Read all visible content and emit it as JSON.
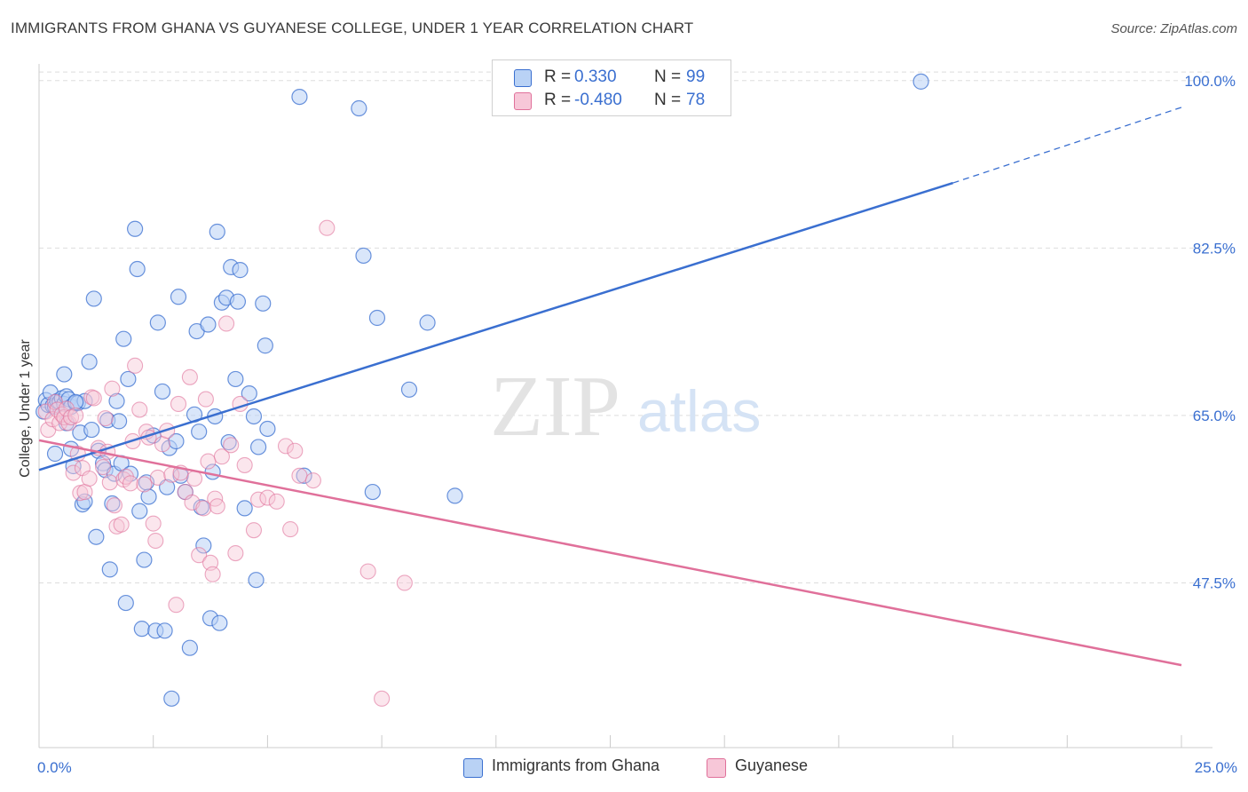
{
  "title": "IMMIGRANTS FROM GHANA VS GUYANESE COLLEGE, UNDER 1 YEAR CORRELATION CHART",
  "source": "Source: ZipAtlas.com",
  "watermark": {
    "zip": "ZIP",
    "atlas": "atlas"
  },
  "colors": {
    "blue": "#3a6fd0",
    "blue_fill": "#b9d2f5",
    "pink": "#e0709a",
    "pink_fill": "#f7c7d8",
    "tick_text": "#3a6fd0"
  },
  "legend": {
    "r_label": "R =",
    "n_label": "N =",
    "entries": [
      {
        "r": "0.330",
        "n": "99"
      },
      {
        "r": "-0.480",
        "n": "78"
      }
    ]
  },
  "chart_data": {
    "type": "scatter",
    "title": "IMMIGRANTS FROM GHANA VS GUYANESE COLLEGE, UNDER 1 YEAR CORRELATION CHART",
    "xlabel": "",
    "ylabel": "College, Under 1 year",
    "xlim": [
      0,
      25
    ],
    "ylim": [
      30,
      101
    ],
    "x_tick_labels": [
      "0.0%",
      "25.0%"
    ],
    "y_ticks": [
      47.5,
      65.0,
      82.5,
      100.0
    ],
    "y_tick_labels": [
      "47.5%",
      "65.0%",
      "82.5%",
      "100.0%"
    ],
    "grid": true,
    "legend_position": "top-center",
    "series": [
      {
        "name": "Immigrants from Ghana",
        "color": "#3a6fd0",
        "trend": {
          "x": [
            0,
            20
          ],
          "y": [
            59.3,
            89.3
          ],
          "dashed_to": [
            25,
            97.2
          ]
        },
        "points": [
          [
            0.1,
            65.4
          ],
          [
            0.15,
            66.6
          ],
          [
            0.2,
            66.1
          ],
          [
            0.25,
            67.4
          ],
          [
            0.3,
            66.0
          ],
          [
            0.35,
            65.9
          ],
          [
            0.4,
            66.5
          ],
          [
            0.45,
            66.4
          ],
          [
            0.5,
            66.8
          ],
          [
            0.55,
            66.2
          ],
          [
            0.6,
            67.0
          ],
          [
            0.65,
            66.7
          ],
          [
            0.7,
            65.9
          ],
          [
            0.8,
            66.3
          ],
          [
            0.85,
            66.3
          ],
          [
            1.0,
            66.5
          ],
          [
            0.35,
            61.0
          ],
          [
            0.55,
            69.3
          ],
          [
            0.6,
            64.2
          ],
          [
            0.7,
            61.5
          ],
          [
            0.75,
            59.7
          ],
          [
            0.8,
            66.4
          ],
          [
            0.9,
            63.2
          ],
          [
            0.95,
            55.7
          ],
          [
            1.0,
            56.0
          ],
          [
            1.1,
            70.6
          ],
          [
            1.15,
            63.5
          ],
          [
            1.2,
            77.2
          ],
          [
            1.25,
            52.3
          ],
          [
            1.3,
            61.3
          ],
          [
            1.4,
            60.0
          ],
          [
            1.45,
            59.3
          ],
          [
            1.5,
            64.5
          ],
          [
            1.55,
            48.9
          ],
          [
            1.6,
            55.8
          ],
          [
            1.65,
            58.9
          ],
          [
            1.7,
            66.5
          ],
          [
            1.75,
            64.4
          ],
          [
            1.8,
            60.0
          ],
          [
            1.85,
            73.0
          ],
          [
            1.9,
            45.4
          ],
          [
            1.95,
            68.8
          ],
          [
            2.0,
            58.9
          ],
          [
            2.1,
            84.5
          ],
          [
            2.15,
            80.3
          ],
          [
            2.2,
            55.0
          ],
          [
            2.25,
            42.7
          ],
          [
            2.3,
            49.9
          ],
          [
            2.35,
            58.0
          ],
          [
            2.4,
            56.5
          ],
          [
            2.5,
            62.9
          ],
          [
            2.55,
            42.5
          ],
          [
            2.6,
            74.7
          ],
          [
            2.7,
            67.5
          ],
          [
            2.75,
            42.5
          ],
          [
            2.8,
            57.5
          ],
          [
            2.85,
            61.6
          ],
          [
            2.9,
            35.4
          ],
          [
            3.0,
            62.3
          ],
          [
            3.05,
            77.4
          ],
          [
            3.1,
            58.7
          ],
          [
            3.2,
            57.0
          ],
          [
            3.3,
            40.7
          ],
          [
            3.4,
            65.1
          ],
          [
            3.45,
            73.8
          ],
          [
            3.5,
            63.3
          ],
          [
            3.55,
            55.4
          ],
          [
            3.6,
            51.4
          ],
          [
            3.7,
            74.5
          ],
          [
            3.75,
            43.8
          ],
          [
            3.8,
            59.1
          ],
          [
            3.85,
            64.9
          ],
          [
            3.9,
            84.2
          ],
          [
            3.95,
            43.3
          ],
          [
            4.0,
            76.8
          ],
          [
            4.1,
            77.3
          ],
          [
            4.15,
            62.2
          ],
          [
            4.2,
            80.5
          ],
          [
            4.3,
            68.8
          ],
          [
            4.35,
            76.9
          ],
          [
            4.4,
            80.2
          ],
          [
            4.5,
            55.3
          ],
          [
            4.6,
            67.3
          ],
          [
            4.7,
            64.9
          ],
          [
            4.75,
            47.8
          ],
          [
            4.8,
            61.7
          ],
          [
            4.9,
            76.7
          ],
          [
            4.95,
            72.3
          ],
          [
            5.0,
            63.6
          ],
          [
            5.7,
            98.3
          ],
          [
            5.8,
            58.7
          ],
          [
            7.0,
            97.1
          ],
          [
            7.1,
            81.7
          ],
          [
            7.3,
            57.0
          ],
          [
            7.4,
            75.2
          ],
          [
            8.1,
            67.7
          ],
          [
            8.5,
            74.7
          ],
          [
            9.1,
            56.6
          ],
          [
            19.3,
            99.9
          ]
        ]
      },
      {
        "name": "Guyanese",
        "color": "#e0709a",
        "trend": {
          "x": [
            0,
            25
          ],
          "y": [
            62.4,
            38.9
          ]
        },
        "points": [
          [
            0.15,
            65.4
          ],
          [
            0.2,
            63.5
          ],
          [
            0.3,
            64.6
          ],
          [
            0.35,
            66.4
          ],
          [
            0.4,
            65.6
          ],
          [
            0.45,
            64.2
          ],
          [
            0.5,
            65.1
          ],
          [
            0.55,
            64.8
          ],
          [
            0.6,
            65.7
          ],
          [
            0.65,
            64.2
          ],
          [
            0.7,
            64.8
          ],
          [
            0.75,
            59.0
          ],
          [
            0.8,
            65.0
          ],
          [
            0.85,
            61.0
          ],
          [
            0.9,
            56.9
          ],
          [
            0.95,
            59.5
          ],
          [
            1.0,
            57.0
          ],
          [
            1.1,
            58.4
          ],
          [
            1.15,
            66.9
          ],
          [
            1.2,
            66.8
          ],
          [
            1.3,
            61.6
          ],
          [
            1.4,
            59.6
          ],
          [
            1.45,
            64.7
          ],
          [
            1.5,
            61.2
          ],
          [
            1.55,
            58.0
          ],
          [
            1.6,
            67.8
          ],
          [
            1.65,
            55.6
          ],
          [
            1.7,
            53.4
          ],
          [
            1.8,
            53.6
          ],
          [
            1.85,
            58.3
          ],
          [
            1.9,
            58.6
          ],
          [
            2.0,
            57.9
          ],
          [
            2.05,
            62.3
          ],
          [
            2.1,
            70.2
          ],
          [
            2.2,
            65.6
          ],
          [
            2.3,
            57.8
          ],
          [
            2.35,
            63.3
          ],
          [
            2.4,
            62.7
          ],
          [
            2.5,
            53.7
          ],
          [
            2.55,
            51.9
          ],
          [
            2.6,
            58.5
          ],
          [
            2.7,
            62.0
          ],
          [
            2.8,
            63.4
          ],
          [
            2.9,
            58.8
          ],
          [
            3.0,
            45.2
          ],
          [
            3.05,
            66.2
          ],
          [
            3.1,
            59.0
          ],
          [
            3.2,
            57.0
          ],
          [
            3.3,
            69.0
          ],
          [
            3.35,
            55.9
          ],
          [
            3.4,
            58.4
          ],
          [
            3.5,
            50.4
          ],
          [
            3.6,
            55.3
          ],
          [
            3.65,
            66.7
          ],
          [
            3.7,
            60.2
          ],
          [
            3.75,
            49.6
          ],
          [
            3.8,
            48.4
          ],
          [
            3.85,
            56.3
          ],
          [
            3.9,
            55.5
          ],
          [
            4.0,
            60.7
          ],
          [
            4.1,
            74.6
          ],
          [
            4.2,
            61.9
          ],
          [
            4.3,
            50.6
          ],
          [
            4.4,
            66.2
          ],
          [
            4.5,
            59.8
          ],
          [
            4.7,
            53.0
          ],
          [
            4.8,
            56.2
          ],
          [
            5.0,
            56.4
          ],
          [
            5.2,
            56.0
          ],
          [
            5.4,
            61.8
          ],
          [
            5.5,
            53.1
          ],
          [
            5.6,
            61.3
          ],
          [
            5.7,
            58.7
          ],
          [
            6.0,
            58.2
          ],
          [
            6.3,
            84.6
          ],
          [
            7.2,
            48.7
          ],
          [
            7.5,
            35.4
          ],
          [
            8.0,
            47.5
          ]
        ]
      }
    ]
  },
  "bottom_legend": [
    {
      "label": "Immigrants from Ghana"
    },
    {
      "label": "Guyanese"
    }
  ]
}
